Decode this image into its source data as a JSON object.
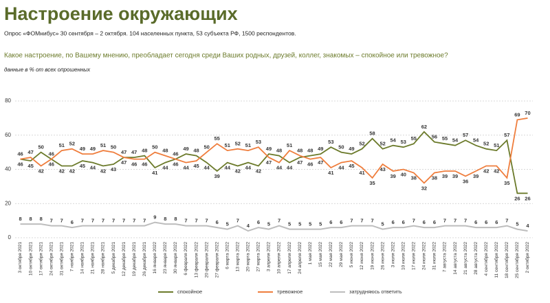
{
  "chart_data": {
    "type": "line",
    "title": "Настроение окружающих",
    "subtitle": "Опрос «ФОМнибус» 30 сентября – 2 октября. 104 населенных пункта, 53 субъекта РФ, 1500 респондентов.",
    "question": "Какое настроение, по Вашему мнению, преобладает сегодня среди Ваших родных, друзей, коллег, знакомых – спокойное или тревожное?",
    "note": "данные в % от всех опрошенных",
    "categories": [
      "3 октября 2021",
      "10 октября 2021",
      "17 октября 2021",
      "24 октября 2021",
      "31 октября 2021",
      "7 ноября 2021",
      "14 ноября 2021",
      "21 ноября 2021",
      "28 ноября 2021",
      "5 декабря 2021",
      "12 декабря 2021",
      "19 декабря 2021",
      "26 декабря 2021",
      "16 января 2022",
      "23 января 2022",
      "30 января 2022",
      "6 февраля 2022",
      "13 февраля 2022",
      "20 февраля 2022",
      "27 февраля 2022",
      "6 марта 2022",
      "13 марта 2022",
      "20 марта 2022",
      "27 марта 2022",
      "3 апреля 2022",
      "10 апреля 2022",
      "17 апреля 2022",
      "24 апреля 2022",
      "1 мая 2022",
      "15 мая 2022",
      "22 мая 2022",
      "29 мая 2022",
      "5 июня 2022",
      "12 июня 2022",
      "19 июня 2022",
      "26 июня 2022",
      "3 июля 2022",
      "10 июля 2022",
      "17 июля 2022",
      "24 июля 2022",
      "31 июля 2022",
      "7 августа 2022",
      "14 августа 2022",
      "21 августа 2022",
      "28 августа 2022",
      "4 сентября 2022",
      "11 сентября 2022",
      "18 сентября 2022",
      "25 сентября 2022",
      "2 октября 2022"
    ],
    "series": [
      {
        "name": "спокойное",
        "color": "#6b7a2a",
        "values": [
          46,
          45,
          50,
          46,
          42,
          42,
          45,
          44,
          42,
          43,
          47,
          47,
          48,
          41,
          44,
          46,
          49,
          48,
          44,
          39,
          44,
          42,
          44,
          42,
          49,
          48,
          44,
          47,
          48,
          49,
          53,
          50,
          49,
          52,
          58,
          52,
          54,
          53,
          55,
          62,
          56,
          55,
          54,
          57,
          54,
          52,
          51,
          57,
          26,
          26
        ]
      },
      {
        "name": "тревожное",
        "color": "#ef7d3c",
        "values": [
          46,
          47,
          42,
          46,
          51,
          52,
          49,
          49,
          51,
          50,
          47,
          46,
          46,
          50,
          48,
          46,
          44,
          45,
          50,
          55,
          51,
          52,
          51,
          53,
          47,
          44,
          51,
          48,
          46,
          47,
          41,
          44,
          45,
          41,
          35,
          43,
          39,
          40,
          38,
          32,
          38,
          39,
          39,
          36,
          39,
          42,
          42,
          35,
          69,
          70
        ]
      },
      {
        "name": "затрудняюсь ответить",
        "color": "#bdbdbd",
        "values": [
          8,
          8,
          8,
          7,
          7,
          6,
          7,
          7,
          7,
          7,
          7,
          7,
          7,
          9,
          8,
          8,
          7,
          7,
          7,
          6,
          5,
          7,
          4,
          6,
          5,
          7,
          5,
          5,
          5,
          5,
          6,
          6,
          7,
          7,
          7,
          5,
          6,
          6,
          7,
          6,
          6,
          7,
          7,
          7,
          6,
          6,
          6,
          7,
          5,
          4
        ]
      }
    ],
    "ylim": [
      0,
      80
    ],
    "yticks": [
      0,
      20,
      40,
      60,
      80
    ],
    "grid": true
  }
}
